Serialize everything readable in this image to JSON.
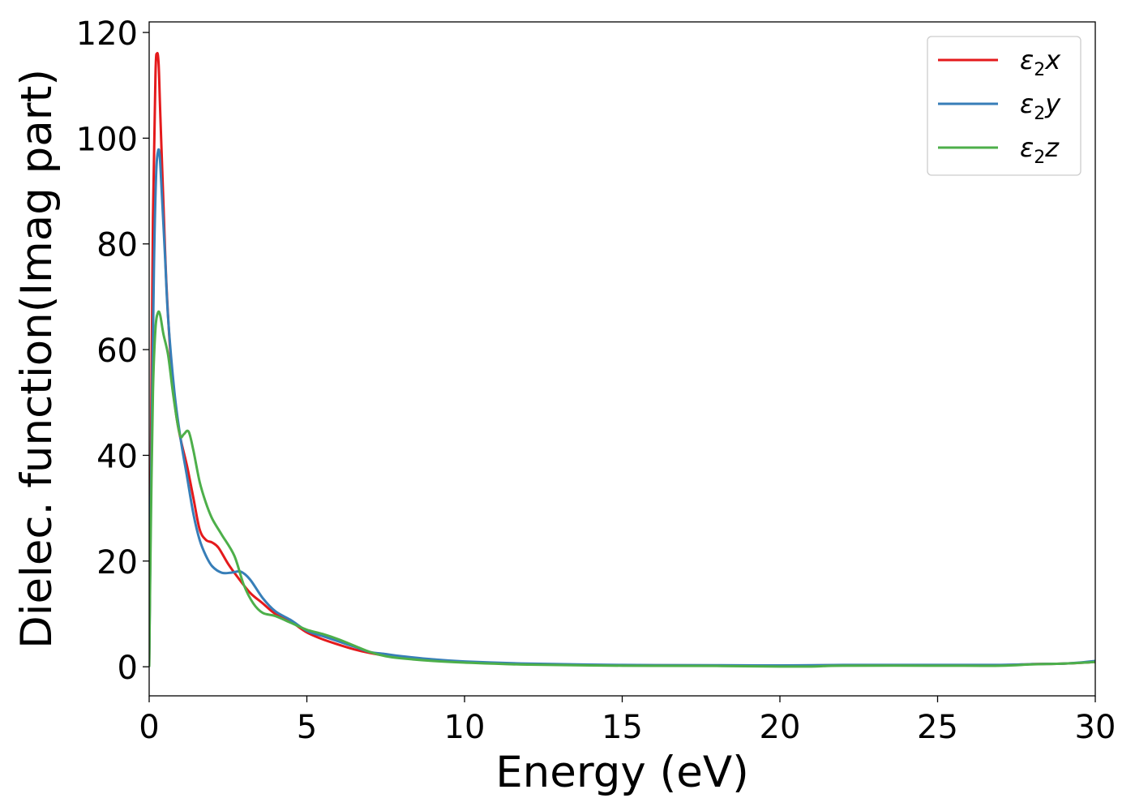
{
  "chart_data": {
    "type": "line",
    "title": "",
    "xlabel": "Energy (eV)",
    "ylabel": "Dielec. function(Imag part)",
    "xlim": [
      0,
      30
    ],
    "ylim": [
      -5.5,
      122
    ],
    "xticks": [
      0,
      5,
      10,
      15,
      20,
      25,
      30
    ],
    "yticks": [
      0,
      20,
      40,
      60,
      80,
      100,
      120
    ],
    "grid": false,
    "legend_position": "top-right",
    "series": [
      {
        "name": "ε₂x",
        "legend": {
          "base": "ε",
          "sub": "2",
          "suffix": "x"
        },
        "color": "#e41a1c",
        "x": [
          0,
          0.05,
          0.12,
          0.2,
          0.25,
          0.3,
          0.35,
          0.45,
          0.55,
          0.7,
          0.85,
          1.0,
          1.2,
          1.4,
          1.6,
          1.8,
          2.0,
          2.2,
          2.5,
          2.8,
          3.2,
          3.6,
          4.0,
          4.5,
          5.0,
          5.5,
          6.0,
          6.5,
          7.0,
          7.5,
          8.0,
          9.0,
          10.0,
          12.0,
          15.0,
          18.0,
          20.0,
          22.0,
          25.0,
          27.0,
          28.0,
          29.0,
          30.0
        ],
        "y": [
          0,
          35,
          85,
          112,
          116,
          114,
          105,
          88,
          72,
          57,
          48,
          43,
          38,
          32,
          26,
          24,
          23.5,
          22.5,
          19.5,
          17,
          14,
          12,
          10,
          8.5,
          6.5,
          5.2,
          4.2,
          3.3,
          2.6,
          2.1,
          1.8,
          1.2,
          0.9,
          0.5,
          0.3,
          0.25,
          0.2,
          0.3,
          0.3,
          0.3,
          0.5,
          0.6,
          0.9
        ]
      },
      {
        "name": "ε₂y",
        "legend": {
          "base": "ε",
          "sub": "2",
          "suffix": "y"
        },
        "color": "#377eb8",
        "x": [
          0,
          0.05,
          0.15,
          0.22,
          0.28,
          0.33,
          0.38,
          0.5,
          0.6,
          0.8,
          1.0,
          1.2,
          1.4,
          1.6,
          1.8,
          2.0,
          2.3,
          2.6,
          2.9,
          3.2,
          3.6,
          4.0,
          4.5,
          5.0,
          5.5,
          6.0,
          6.5,
          7.0,
          7.5,
          8.0,
          9.0,
          10.0,
          12.0,
          15.0,
          18.0,
          20.0,
          22.0,
          25.0,
          27.0,
          28.0,
          29.0,
          29.5,
          30.0
        ],
        "y": [
          0,
          30,
          75,
          93,
          97.5,
          97,
          92,
          78,
          66,
          52,
          43,
          36,
          29,
          24,
          21,
          19,
          17.8,
          17.8,
          18,
          16.5,
          13,
          10.5,
          8.8,
          6.8,
          5.8,
          4.8,
          3.8,
          2.8,
          2.4,
          2.0,
          1.4,
          1.0,
          0.6,
          0.35,
          0.3,
          0.25,
          0.35,
          0.35,
          0.35,
          0.5,
          0.6,
          0.8,
          1.1
        ]
      },
      {
        "name": "ε₂z",
        "legend": {
          "base": "ε",
          "sub": "2",
          "suffix": "z"
        },
        "color": "#4daf4a",
        "x": [
          0,
          0.05,
          0.12,
          0.2,
          0.28,
          0.35,
          0.45,
          0.6,
          0.75,
          0.9,
          1.0,
          1.1,
          1.25,
          1.4,
          1.6,
          1.8,
          2.0,
          2.3,
          2.7,
          3.0,
          3.3,
          3.6,
          4.0,
          4.5,
          5.0,
          5.5,
          6.0,
          6.5,
          7.0,
          7.5,
          8.0,
          9.0,
          10.0,
          12.0,
          15.0,
          18.0,
          20.0,
          21.0,
          22.0,
          25.0,
          27.0,
          28.0,
          29.0,
          30.0
        ],
        "y": [
          0,
          25,
          52,
          64,
          67,
          66.5,
          63,
          59,
          52,
          46,
          43.5,
          44,
          44.5,
          41,
          35,
          31,
          28,
          25,
          21,
          15.5,
          12,
          10.2,
          9.6,
          8.3,
          7.0,
          6.2,
          5.2,
          4.0,
          2.8,
          2.0,
          1.6,
          1.1,
          0.8,
          0.4,
          0.2,
          0.15,
          0.05,
          0.05,
          0.2,
          0.2,
          0.2,
          0.45,
          0.6,
          0.9
        ]
      }
    ]
  }
}
